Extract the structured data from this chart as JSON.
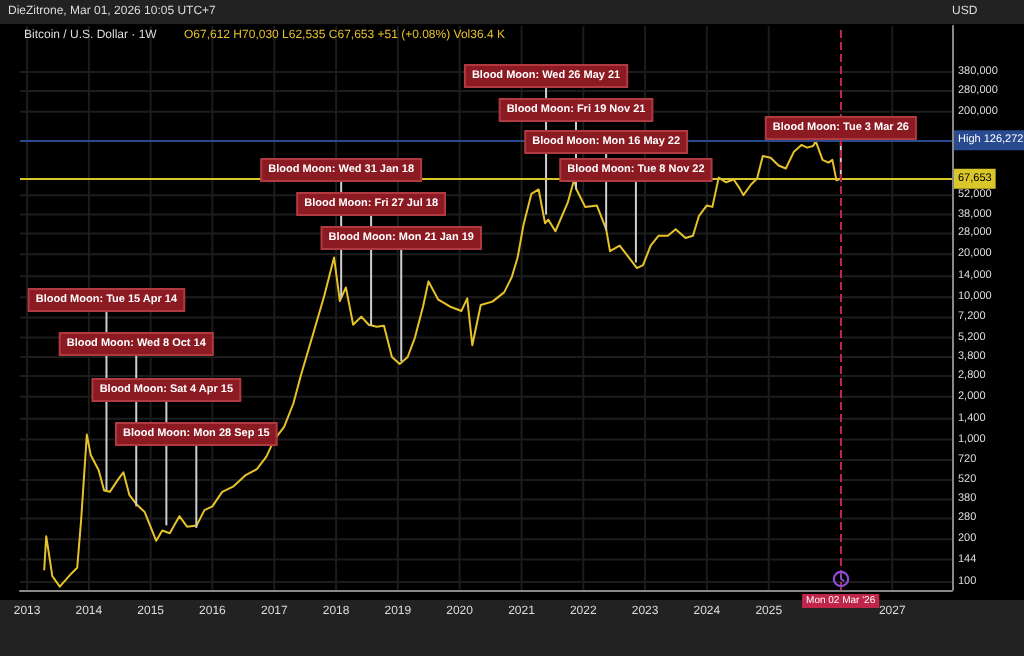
{
  "chart_data": {
    "type": "line",
    "title": "Bitcoin / U.S. Dollar · 1W",
    "subtitle": "O67,612 H70,030 L62,535 C67,653 +51 (+0.08%) Vol36.4 K",
    "ylabel": "USD",
    "log": "y",
    "grid": true,
    "marker": "none",
    "line_style": "solid",
    "xlim": [
      "2012-11-20",
      "2027-12-20"
    ],
    "ylim": [
      88,
      800000
    ],
    "xticks": [
      "2013",
      "2014",
      "2015",
      "2016",
      "2017",
      "2018",
      "2019",
      "2020",
      "2021",
      "2022",
      "2023",
      "2024",
      "2025",
      "2027"
    ],
    "yticks": [
      100,
      144,
      200,
      280,
      380,
      520,
      720,
      {
        "value": 1000,
        "label": "1,000"
      },
      {
        "value": 1400,
        "label": "1,400"
      },
      {
        "value": 2000,
        "label": "2,000"
      },
      {
        "value": 2800,
        "label": "2,800"
      },
      {
        "value": 3800,
        "label": "3,800"
      },
      {
        "value": 5200,
        "label": "5,200"
      },
      {
        "value": 7200,
        "label": "7,200"
      },
      {
        "value": 10000,
        "label": "10,000"
      },
      {
        "value": 14000,
        "label": "14,000"
      },
      {
        "value": 20000,
        "label": "20,000"
      },
      {
        "value": 28000,
        "label": "28,000"
      },
      {
        "value": 38000,
        "label": "38,000"
      },
      {
        "value": 52000,
        "label": "52,000"
      },
      {
        "value": 200000,
        "label": "200,000"
      },
      {
        "value": 280000,
        "label": "280,000"
      },
      {
        "value": 380000,
        "label": "380,000"
      }
    ],
    "series": [
      {
        "color": "#e6c229",
        "x": [
          "2013-04-12",
          "2013-04-24",
          "2013-05-30",
          "2013-07-13",
          "2013-09-20",
          "2013-10-24",
          "2013-11-16",
          "2013-12-20",
          "2014-01-12",
          "2014-02-28",
          "2014-04-01",
          "2014-05-05",
          "2014-06-20",
          "2014-07-24",
          "2014-08-28",
          "2014-10-11",
          "2014-11-27",
          "2015-02-03",
          "2015-03-11",
          "2015-04-24",
          "2015-06-20",
          "2015-08-04",
          "2015-09-30",
          "2015-11-15",
          "2016-01-01",
          "2016-02-28",
          "2016-05-05",
          "2016-07-13",
          "2016-09-20",
          "2016-11-15",
          "2017-01-01",
          "2017-02-28",
          "2017-04-24",
          "2017-06-08",
          "2017-08-16",
          "2017-10-24",
          "2017-12-20",
          "2018-01-23",
          "2018-02-28",
          "2018-04-12",
          "2018-05-30",
          "2018-07-13",
          "2018-08-28",
          "2018-10-11",
          "2018-11-27",
          "2019-01-12",
          "2019-02-28",
          "2019-04-12",
          "2019-05-30",
          "2019-07-01",
          "2019-08-28",
          "2019-11-04",
          "2020-01-12",
          "2020-02-15",
          "2020-03-16",
          "2020-05-05",
          "2020-07-13",
          "2020-09-20",
          "2020-11-04",
          "2020-12-09",
          "2021-01-12",
          "2021-02-28",
          "2021-04-12",
          "2021-05-20",
          "2021-06-08",
          "2021-07-20",
          "2021-10-01",
          "2021-11-08",
          "2021-11-22",
          "2022-01-12",
          "2022-03-22",
          "2022-05-16",
          "2022-06-08",
          "2022-08-04",
          "2022-09-20",
          "2022-11-14",
          "2022-12-20",
          "2023-02-03",
          "2023-03-22",
          "2023-05-16",
          "2023-07-01",
          "2023-08-28",
          "2023-10-11",
          "2023-11-15",
          "2024-01-01",
          "2024-02-03",
          "2024-03-11",
          "2024-04-24",
          "2024-06-08",
          "2024-07-13",
          "2024-08-04",
          "2024-09-20",
          "2024-10-24",
          "2024-11-27",
          "2025-01-12",
          "2025-02-28",
          "2025-04-12",
          "2025-05-30",
          "2025-07-13",
          "2025-08-16",
          "2025-09-20",
          "2025-10-06",
          "2025-11-15",
          "2025-12-20",
          "2026-01-12",
          "2026-02-05",
          "2026-03-01"
        ],
        "values": [
          121,
          210,
          110,
          93,
          115,
          126,
          270,
          1085,
          780,
          610,
          440,
          430,
          520,
          590,
          410,
          350,
          310,
          195,
          230,
          220,
          290,
          245,
          250,
          320,
          340,
          430,
          470,
          560,
          620,
          760,
          1000,
          1230,
          1800,
          2850,
          5400,
          10300,
          19000,
          9400,
          11700,
          6400,
          7300,
          6400,
          6200,
          6300,
          3800,
          3400,
          3800,
          5200,
          8600,
          12900,
          9600,
          8600,
          8000,
          9800,
          4600,
          8800,
          9300,
          10800,
          13800,
          19000,
          31900,
          53000,
          57000,
          33000,
          35000,
          29000,
          46000,
          67000,
          57000,
          43000,
          44000,
          30000,
          21000,
          23000,
          19500,
          16000,
          16800,
          23000,
          27000,
          27000,
          30000,
          26000,
          27000,
          37000,
          44000,
          43000,
          69000,
          64000,
          67000,
          58000,
          52000,
          62000,
          68000,
          98000,
          95000,
          84000,
          80000,
          105000,
          117000,
          112000,
          115000,
          124000,
          92000,
          88000,
          92000,
          66000,
          67653
        ]
      }
    ],
    "ref_lines": [
      {
        "axis": "y",
        "value": 126272,
        "label": "High 126,272",
        "color": "#2a4a8f",
        "line_style": "solid"
      },
      {
        "axis": "y",
        "value": 67653,
        "label": "67,653",
        "color": "#d8c62a",
        "line_style": "solid"
      },
      {
        "axis": "x",
        "value": "2026-03-02",
        "label": "Mon 02 Mar '26",
        "color": "#c0264a",
        "line_style": "dashed"
      }
    ],
    "annotations": [
      "DieZitrone, Mar 01, 2026 10:05 UTC+7",
      {
        "text": "Blood Moon: Tue 15 Apr 14",
        "x": "2014-04-15",
        "y": 440
      },
      {
        "text": "Blood Moon: Wed 8 Oct 14",
        "x": "2014-10-08",
        "y": 340
      },
      {
        "text": "Blood Moon: Sat 4 Apr 15",
        "x": "2015-04-04",
        "y": 250
      },
      {
        "text": "Blood Moon: Mon 28 Sep 15",
        "x": "2015-09-28",
        "y": 240
      },
      {
        "text": "Blood Moon: Wed 31 Jan 18",
        "x": "2018-01-31",
        "y": 10000
      },
      {
        "text": "Blood Moon: Fri 27 Jul 18",
        "x": "2018-07-27",
        "y": 6300
      },
      {
        "text": "Blood Moon: Mon 21 Jan 19",
        "x": "2019-01-21",
        "y": 3550
      },
      {
        "text": "Blood Moon: Wed 26 May 21",
        "x": "2021-05-26",
        "y": 38000
      },
      {
        "text": "Blood Moon: Fri 19 Nov 21",
        "x": "2021-11-19",
        "y": 57000
      },
      {
        "text": "Blood Moon: Mon 16 May 22",
        "x": "2022-05-16",
        "y": 29500
      },
      {
        "text": "Blood Moon: Tue 8 Nov 22",
        "x": "2022-11-08",
        "y": 17500
      },
      {
        "text": "Blood Moon: Tue 3 Mar 26",
        "x": "2026-03-03",
        "y": 67000
      }
    ]
  }
}
